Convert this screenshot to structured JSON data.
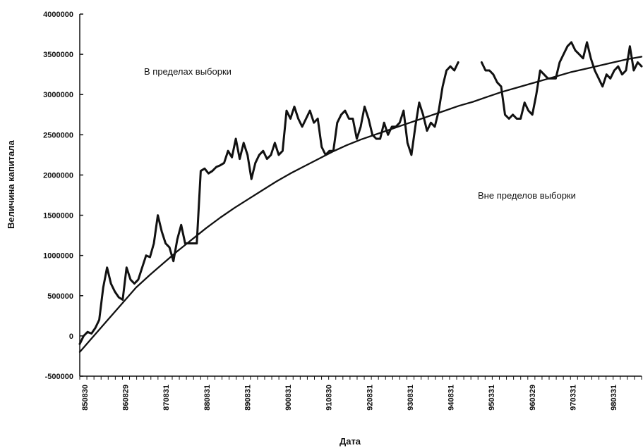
{
  "chart_data": {
    "type": "line",
    "xlabel": "Дата",
    "ylabel": "Величина капитала",
    "ylim": [
      -500000,
      4000000
    ],
    "y_ticks": [
      4000000,
      3500000,
      3000000,
      2500000,
      2000000,
      1500000,
      1000000,
      500000,
      0,
      -500000
    ],
    "x_tick_labels": [
      "850830",
      "860829",
      "870831",
      "880831",
      "890831",
      "900831",
      "910830",
      "920831",
      "930831",
      "940831",
      "950331",
      "960329",
      "970331",
      "980331"
    ],
    "annotations": [
      "В пределах выборки",
      "Вне пределов выборки"
    ],
    "grid": false,
    "legend": "none",
    "series": [
      {
        "kind": "equity",
        "values": [
          -100000,
          0,
          50000,
          30000,
          100000,
          200000,
          600000,
          850000,
          650000,
          550000,
          480000,
          450000,
          850000,
          700000,
          650000,
          700000,
          850000,
          1000000,
          980000,
          1150000,
          1500000,
          1300000,
          1150000,
          1100000,
          930000,
          1200000,
          1380000,
          1150000,
          1150000,
          1150000,
          1150000,
          2050000,
          2080000,
          2020000,
          2050000,
          2100000,
          2120000,
          2150000,
          2300000,
          2220000,
          2450000,
          2200000,
          2400000,
          2250000,
          1950000,
          2150000,
          2250000,
          2300000,
          2200000,
          2250000,
          2400000,
          2250000,
          2300000,
          2800000,
          2700000,
          2850000,
          2700000,
          2600000,
          2700000,
          2800000,
          2650000,
          2700000,
          2350000,
          2250000,
          2300000,
          2300000,
          2650000,
          2750000,
          2800000,
          2700000,
          2700000,
          2450000,
          2600000,
          2850000,
          2700000,
          2500000,
          2450000,
          2450000,
          2650000,
          2500000,
          2600000,
          2600000,
          2650000,
          2800000,
          2400000,
          2250000,
          2600000,
          2900000,
          2750000,
          2550000,
          2650000,
          2600000,
          2800000,
          3100000,
          3300000,
          3350000,
          3300000,
          3400000,
          null,
          null,
          null,
          null,
          null,
          3400000,
          3300000,
          3300000,
          3250000,
          3150000,
          3100000,
          2750000,
          2700000,
          2750000,
          2700000,
          2700000,
          2900000,
          2800000,
          2750000,
          3000000,
          3300000,
          3250000,
          3200000,
          3200000,
          3200000,
          3400000,
          3500000,
          3600000,
          3650000,
          3550000,
          3500000,
          3450000,
          3650000,
          3450000,
          3300000,
          3200000,
          3100000,
          3250000,
          3200000,
          3300000,
          3350000,
          3250000,
          3300000,
          3600000,
          3300000,
          3400000,
          3350000
        ]
      },
      {
        "kind": "fitted-curve",
        "values": [
          -200000,
          0,
          200000,
          400000,
          600000,
          760000,
          910000,
          1060000,
          1200000,
          1340000,
          1470000,
          1590000,
          1700000,
          1810000,
          1920000,
          2020000,
          2110000,
          2200000,
          2290000,
          2370000,
          2440000,
          2500000,
          2560000,
          2620000,
          2680000,
          2740000,
          2800000,
          2860000,
          2910000,
          2970000,
          3030000,
          3080000,
          3130000,
          3180000,
          3230000,
          3280000,
          3320000,
          3360000,
          3400000,
          3440000,
          3470000
        ]
      }
    ]
  }
}
